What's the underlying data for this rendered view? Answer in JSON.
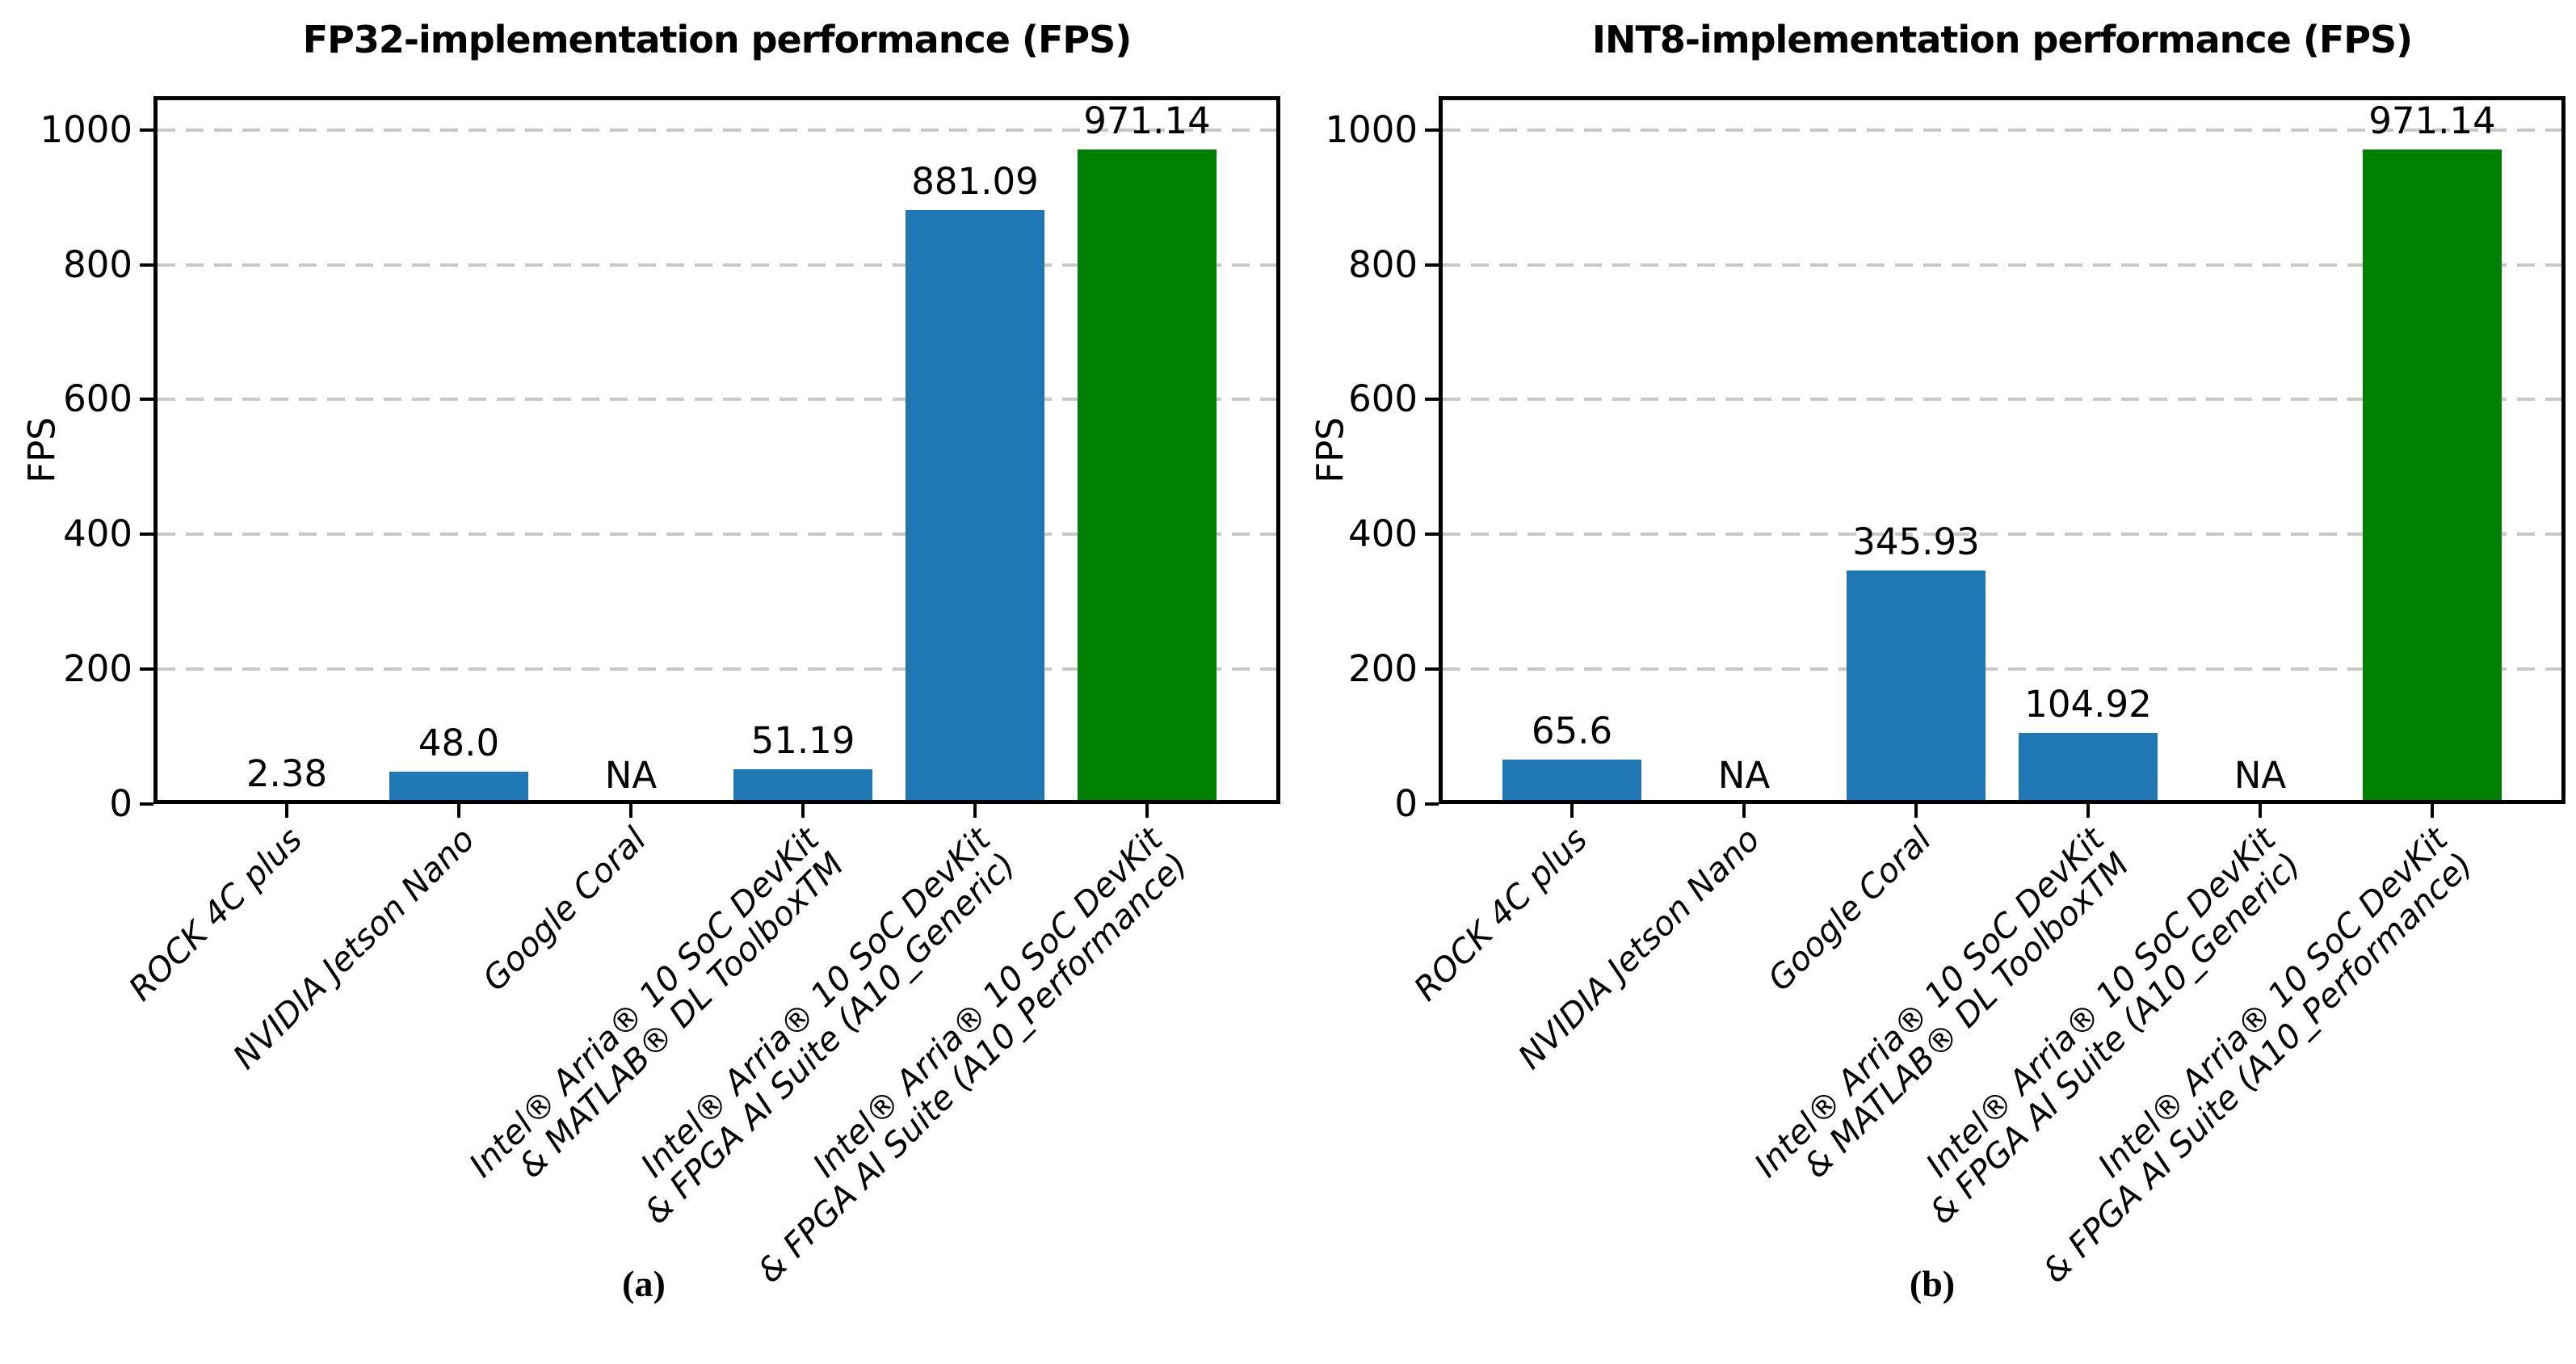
{
  "figure": {
    "background": "#ffffff",
    "text_color": "#000000",
    "grid_color": "#c8c8c8",
    "bar_color_default": "#1f77b4",
    "bar_color_highlight": "#008000"
  },
  "chart_data": [
    {
      "type": "bar",
      "title": "FP32-implementation performance (FPS)",
      "caption": "(a)",
      "ylabel": "FPS",
      "xlabel": "",
      "ylim": [
        0,
        1050
      ],
      "yticks": [
        0,
        200,
        400,
        600,
        800,
        1000
      ],
      "grid": "horizontal-dashed",
      "legend": "none",
      "categories": [
        [
          "ROCK 4C plus"
        ],
        [
          "NVIDIA Jetson Nano"
        ],
        [
          "Google Coral"
        ],
        [
          "Intel® Arria® 10 SoC DevKit",
          "& MATLAB® DL ToolboxTM"
        ],
        [
          "Intel® Arria® 10 SoC DevKit",
          "& FPGA AI Suite (A10_Generic)"
        ],
        [
          "Intel® Arria® 10 SoC DevKit",
          "& FPGA AI Suite (A10_Performance)"
        ]
      ],
      "values": [
        2.38,
        48.0,
        null,
        51.19,
        881.09,
        971.14
      ],
      "value_labels": [
        "2.38",
        "48.0",
        "NA",
        "51.19",
        "881.09",
        "971.14"
      ],
      "bar_colors": [
        "#1f77b4",
        "#1f77b4",
        "#1f77b4",
        "#1f77b4",
        "#1f77b4",
        "#008000"
      ]
    },
    {
      "type": "bar",
      "title": "INT8-implementation performance (FPS)",
      "caption": "(b)",
      "ylabel": "FPS",
      "xlabel": "",
      "ylim": [
        0,
        1050
      ],
      "yticks": [
        0,
        200,
        400,
        600,
        800,
        1000
      ],
      "grid": "horizontal-dashed",
      "legend": "none",
      "categories": [
        [
          "ROCK 4C plus"
        ],
        [
          "NVIDIA Jetson Nano"
        ],
        [
          "Google Coral"
        ],
        [
          "Intel® Arria® 10 SoC DevKit",
          "& MATLAB® DL ToolboxTM"
        ],
        [
          "Intel® Arria® 10 SoC DevKit",
          "& FPGA AI Suite (A10_Generic)"
        ],
        [
          "Intel® Arria® 10 SoC DevKit",
          "& FPGA AI Suite (A10_Performance)"
        ]
      ],
      "values": [
        65.6,
        null,
        345.93,
        104.92,
        null,
        971.14
      ],
      "value_labels": [
        "65.6",
        "NA",
        "345.93",
        "104.92",
        "NA",
        "971.14"
      ],
      "bar_colors": [
        "#1f77b4",
        "#1f77b4",
        "#1f77b4",
        "#1f77b4",
        "#1f77b4",
        "#008000"
      ]
    }
  ]
}
